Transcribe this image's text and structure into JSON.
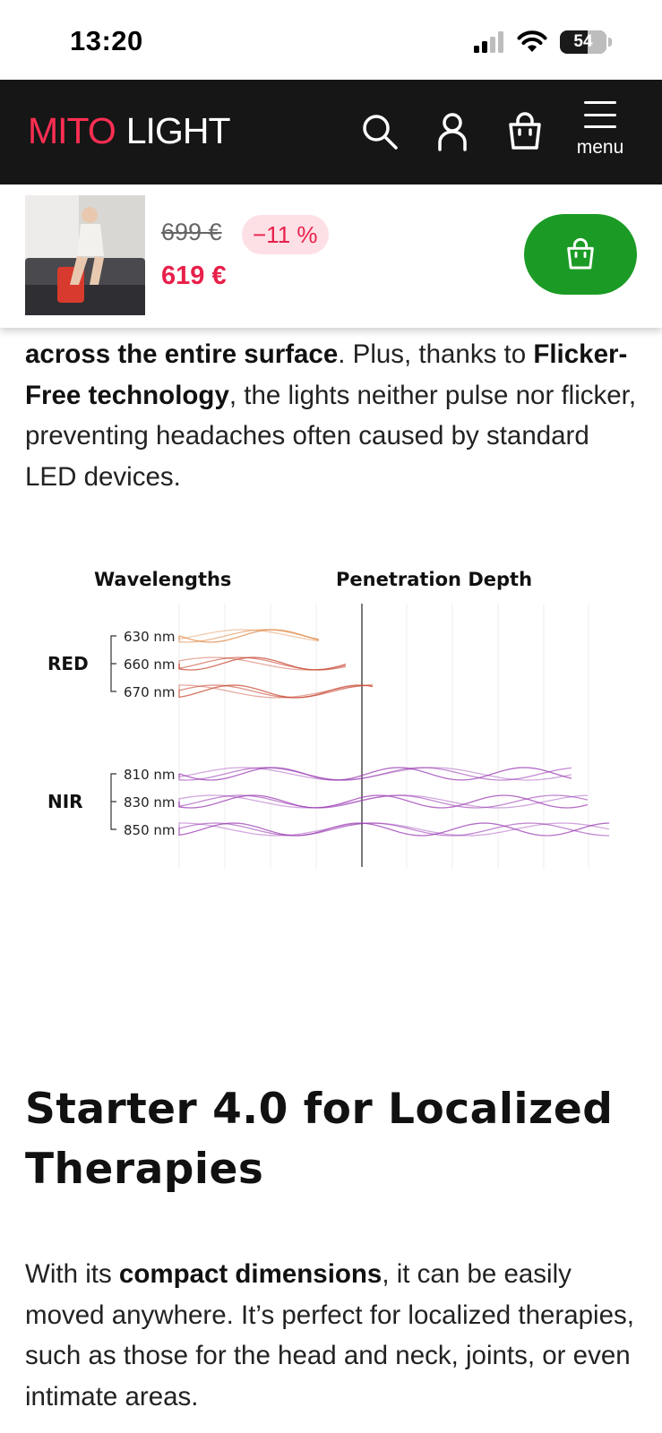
{
  "status_bar": {
    "time": "13:20",
    "battery": "54"
  },
  "header": {
    "brand": "MITO",
    "brand_sub": "LIGHT",
    "menu_label": "menu",
    "brand_color": "#ff2e52"
  },
  "sticky_bar": {
    "old_price": "699 €",
    "discount": "−11 %",
    "price": "619 €",
    "cta_color": "#1b9b25"
  },
  "intro": {
    "p1_b1": "across the entire surface",
    "p1_t1": ". Plus, thanks to",
    "p1_b2": "Flicker-Free technology",
    "p1_t2": ", the lights neither pulse nor flicker, preventing headaches often caused by standard LED devices."
  },
  "diagram": {
    "heading_left": "Wavelengths",
    "heading_right": "Penetration Depth",
    "groups": [
      {
        "label": "RED",
        "wavelengths": [
          "630 nm",
          "660 nm",
          "670 nm"
        ],
        "color": "#c8452f"
      },
      {
        "label": "NIR",
        "wavelengths": [
          "810 nm",
          "830 nm",
          "850 nm"
        ],
        "color": "#9a3bb3"
      }
    ]
  },
  "section": {
    "heading": "Starter 4.0 for Localized Therapies",
    "p_t1": "With its ",
    "p_b1": "compact dimensions",
    "p_t2": ", it can be easily moved anywhere. It’s perfect for localized therapies, such as those for the head and neck, joints, or even intimate areas."
  }
}
